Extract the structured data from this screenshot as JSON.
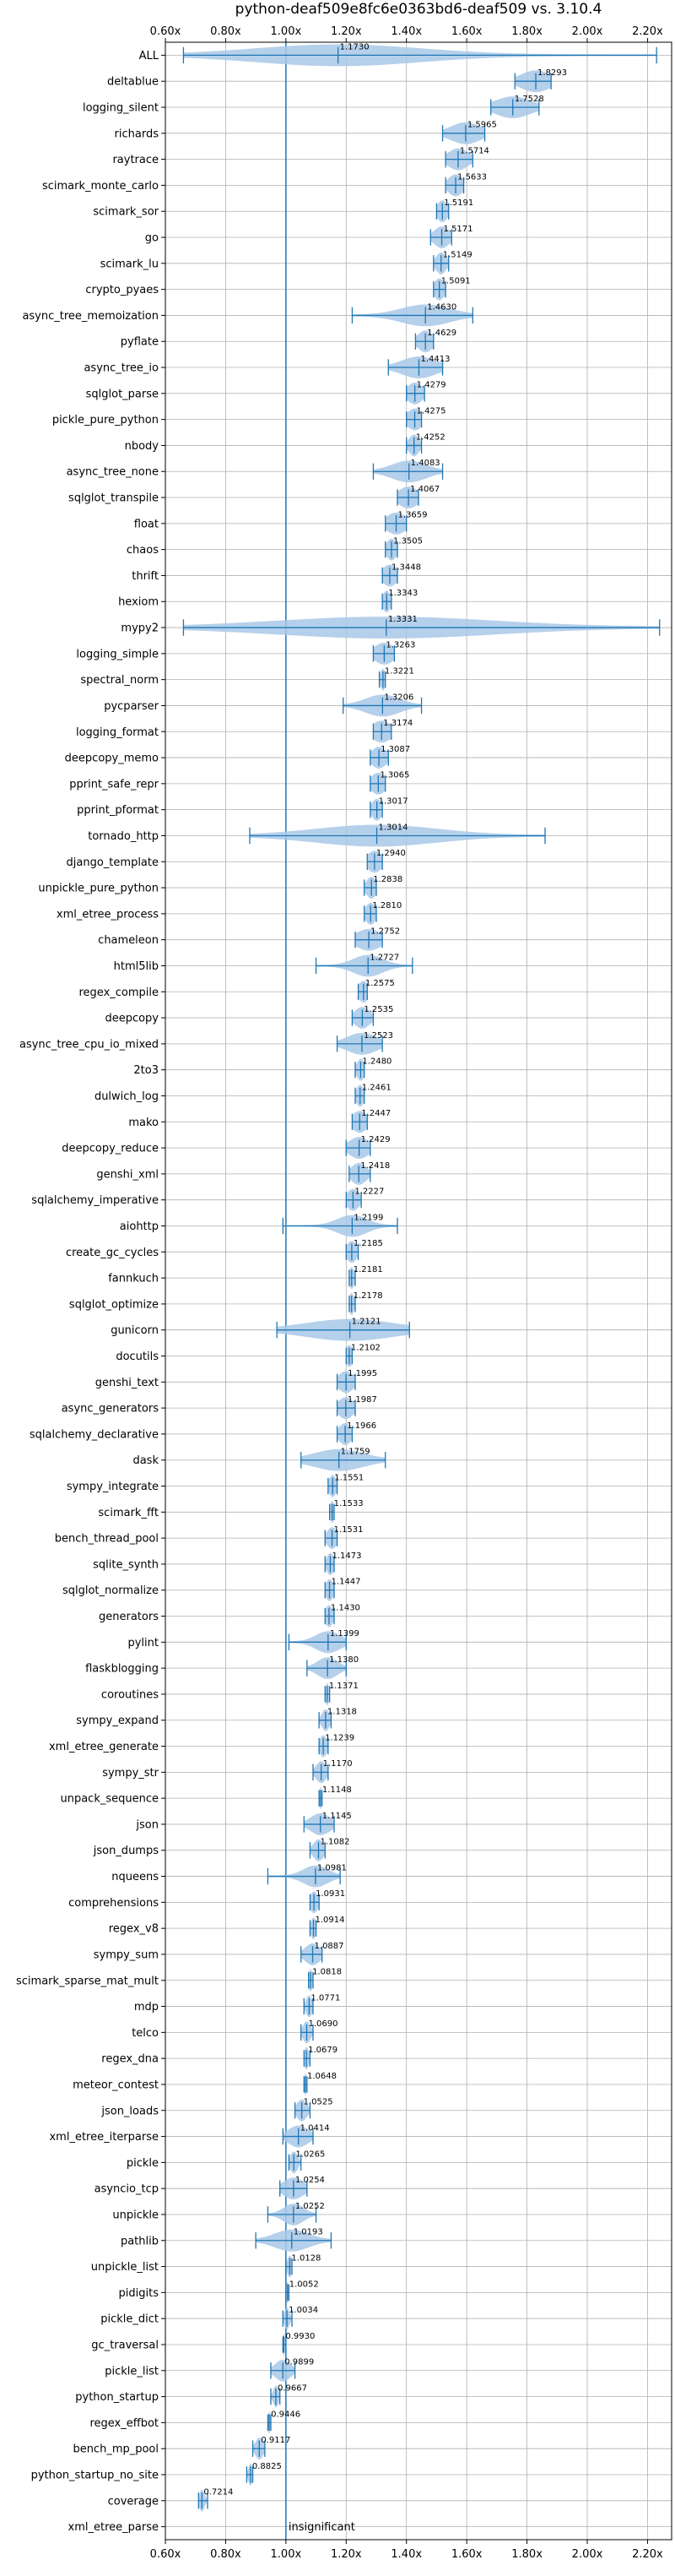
{
  "chart_data": {
    "type": "violin",
    "title": "python-deaf509e8fc6e0363bd6-deaf509 vs. 3.10.4",
    "xlim": [
      0.6,
      2.28
    ],
    "x_ticks": [
      0.6,
      0.8,
      1.0,
      1.2,
      1.4,
      1.6,
      1.8,
      2.0,
      2.2
    ],
    "x_tick_labels": [
      "0.60x",
      "0.80x",
      "1.00x",
      "1.20x",
      "1.40x",
      "1.60x",
      "1.80x",
      "2.00x",
      "2.20x"
    ],
    "grid": true,
    "reference_line": 1.0,
    "colors": {
      "violin": "#a8c8e8",
      "line": "#1f77b4",
      "grid": "#b0b0b0"
    },
    "benchmarks": [
      {
        "name": "ALL",
        "value": 1.173,
        "label": "1.1730",
        "min": 0.66,
        "max": 2.23,
        "spread": 0.34
      },
      {
        "name": "deltablue",
        "value": 1.8293,
        "label": "1.8293",
        "min": 1.76,
        "max": 1.88,
        "spread": 0.06
      },
      {
        "name": "logging_silent",
        "value": 1.7528,
        "label": "1.7528",
        "min": 1.68,
        "max": 1.84,
        "spread": 0.07
      },
      {
        "name": "richards",
        "value": 1.5965,
        "label": "1.5965",
        "min": 1.52,
        "max": 1.66,
        "spread": 0.06
      },
      {
        "name": "raytrace",
        "value": 1.5714,
        "label": "1.5714",
        "min": 1.53,
        "max": 1.62,
        "spread": 0.04
      },
      {
        "name": "scimark_monte_carlo",
        "value": 1.5633,
        "label": "1.5633",
        "min": 1.53,
        "max": 1.59,
        "spread": 0.03
      },
      {
        "name": "scimark_sor",
        "value": 1.5191,
        "label": "1.5191",
        "min": 1.5,
        "max": 1.54,
        "spread": 0.02
      },
      {
        "name": "go",
        "value": 1.5171,
        "label": "1.5171",
        "min": 1.48,
        "max": 1.55,
        "spread": 0.03
      },
      {
        "name": "scimark_lu",
        "value": 1.5149,
        "label": "1.5149",
        "min": 1.49,
        "max": 1.54,
        "spread": 0.02
      },
      {
        "name": "crypto_pyaes",
        "value": 1.5091,
        "label": "1.5091",
        "min": 1.49,
        "max": 1.53,
        "spread": 0.02
      },
      {
        "name": "async_tree_memoization",
        "value": 1.463,
        "label": "1.4630",
        "min": 1.22,
        "max": 1.62,
        "spread": 0.1
      },
      {
        "name": "pyflate",
        "value": 1.4629,
        "label": "1.4629",
        "min": 1.43,
        "max": 1.49,
        "spread": 0.03
      },
      {
        "name": "async_tree_io",
        "value": 1.4413,
        "label": "1.4413",
        "min": 1.34,
        "max": 1.52,
        "spread": 0.07
      },
      {
        "name": "sqlglot_parse",
        "value": 1.4279,
        "label": "1.4279",
        "min": 1.4,
        "max": 1.46,
        "spread": 0.03
      },
      {
        "name": "pickle_pure_python",
        "value": 1.4275,
        "label": "1.4275",
        "min": 1.4,
        "max": 1.45,
        "spread": 0.03
      },
      {
        "name": "nbody",
        "value": 1.4252,
        "label": "1.4252",
        "min": 1.4,
        "max": 1.45,
        "spread": 0.02
      },
      {
        "name": "async_tree_none",
        "value": 1.4083,
        "label": "1.4083",
        "min": 1.29,
        "max": 1.52,
        "spread": 0.07
      },
      {
        "name": "sqlglot_transpile",
        "value": 1.4067,
        "label": "1.4067",
        "min": 1.37,
        "max": 1.44,
        "spread": 0.04
      },
      {
        "name": "float",
        "value": 1.3659,
        "label": "1.3659",
        "min": 1.33,
        "max": 1.4,
        "spread": 0.04
      },
      {
        "name": "chaos",
        "value": 1.3505,
        "label": "1.3505",
        "min": 1.33,
        "max": 1.37,
        "spread": 0.02
      },
      {
        "name": "thrift",
        "value": 1.3448,
        "label": "1.3448",
        "min": 1.32,
        "max": 1.37,
        "spread": 0.03
      },
      {
        "name": "hexiom",
        "value": 1.3343,
        "label": "1.3343",
        "min": 1.32,
        "max": 1.35,
        "spread": 0.015
      },
      {
        "name": "mypy2",
        "value": 1.3331,
        "label": "1.3331",
        "min": 0.66,
        "max": 2.24,
        "spread": 0.45
      },
      {
        "name": "logging_simple",
        "value": 1.3263,
        "label": "1.3263",
        "min": 1.29,
        "max": 1.36,
        "spread": 0.04
      },
      {
        "name": "spectral_norm",
        "value": 1.3221,
        "label": "1.3221",
        "min": 1.31,
        "max": 1.33,
        "spread": 0.01
      },
      {
        "name": "pycparser",
        "value": 1.3206,
        "label": "1.3206",
        "min": 1.19,
        "max": 1.45,
        "spread": 0.07
      },
      {
        "name": "logging_format",
        "value": 1.3174,
        "label": "1.3174",
        "min": 1.29,
        "max": 1.35,
        "spread": 0.04
      },
      {
        "name": "deepcopy_memo",
        "value": 1.3087,
        "label": "1.3087",
        "min": 1.28,
        "max": 1.34,
        "spread": 0.03
      },
      {
        "name": "pprint_safe_repr",
        "value": 1.3065,
        "label": "1.3065",
        "min": 1.28,
        "max": 1.33,
        "spread": 0.03
      },
      {
        "name": "pprint_pformat",
        "value": 1.3017,
        "label": "1.3017",
        "min": 1.28,
        "max": 1.32,
        "spread": 0.02
      },
      {
        "name": "tornado_http",
        "value": 1.3014,
        "label": "1.3014",
        "min": 0.88,
        "max": 1.86,
        "spread": 0.25
      },
      {
        "name": "django_template",
        "value": 1.294,
        "label": "1.2940",
        "min": 1.27,
        "max": 1.32,
        "spread": 0.03
      },
      {
        "name": "unpickle_pure_python",
        "value": 1.2838,
        "label": "1.2838",
        "min": 1.26,
        "max": 1.3,
        "spread": 0.02
      },
      {
        "name": "xml_etree_process",
        "value": 1.281,
        "label": "1.2810",
        "min": 1.26,
        "max": 1.3,
        "spread": 0.02
      },
      {
        "name": "chameleon",
        "value": 1.2752,
        "label": "1.2752",
        "min": 1.23,
        "max": 1.32,
        "spread": 0.05
      },
      {
        "name": "html5lib",
        "value": 1.2727,
        "label": "1.2727",
        "min": 1.1,
        "max": 1.42,
        "spread": 0.06
      },
      {
        "name": "regex_compile",
        "value": 1.2575,
        "label": "1.2575",
        "min": 1.24,
        "max": 1.27,
        "spread": 0.02
      },
      {
        "name": "deepcopy",
        "value": 1.2535,
        "label": "1.2535",
        "min": 1.22,
        "max": 1.29,
        "spread": 0.03
      },
      {
        "name": "async_tree_cpu_io_mixed",
        "value": 1.2523,
        "label": "1.2523",
        "min": 1.17,
        "max": 1.32,
        "spread": 0.06
      },
      {
        "name": "2to3",
        "value": 1.248,
        "label": "1.2480",
        "min": 1.23,
        "max": 1.26,
        "spread": 0.015
      },
      {
        "name": "dulwich_log",
        "value": 1.2461,
        "label": "1.2461",
        "min": 1.23,
        "max": 1.26,
        "spread": 0.015
      },
      {
        "name": "mako",
        "value": 1.2447,
        "label": "1.2447",
        "min": 1.22,
        "max": 1.27,
        "spread": 0.03
      },
      {
        "name": "deepcopy_reduce",
        "value": 1.2429,
        "label": "1.2429",
        "min": 1.2,
        "max": 1.28,
        "spread": 0.04
      },
      {
        "name": "genshi_xml",
        "value": 1.2418,
        "label": "1.2418",
        "min": 1.21,
        "max": 1.28,
        "spread": 0.03
      },
      {
        "name": "sqlalchemy_imperative",
        "value": 1.2227,
        "label": "1.2227",
        "min": 1.2,
        "max": 1.25,
        "spread": 0.025
      },
      {
        "name": "aiohttp",
        "value": 1.2199,
        "label": "1.2199",
        "min": 0.99,
        "max": 1.37,
        "spread": 0.06
      },
      {
        "name": "create_gc_cycles",
        "value": 1.2185,
        "label": "1.2185",
        "min": 1.2,
        "max": 1.24,
        "spread": 0.02
      },
      {
        "name": "fannkuch",
        "value": 1.2181,
        "label": "1.2181",
        "min": 1.21,
        "max": 1.23,
        "spread": 0.01
      },
      {
        "name": "sqlglot_optimize",
        "value": 1.2178,
        "label": "1.2178",
        "min": 1.21,
        "max": 1.23,
        "spread": 0.01
      },
      {
        "name": "gunicorn",
        "value": 1.2121,
        "label": "1.2121",
        "min": 0.97,
        "max": 1.41,
        "spread": 0.18
      },
      {
        "name": "docutils",
        "value": 1.2102,
        "label": "1.2102",
        "min": 1.2,
        "max": 1.22,
        "spread": 0.015
      },
      {
        "name": "genshi_text",
        "value": 1.1995,
        "label": "1.1995",
        "min": 1.17,
        "max": 1.23,
        "spread": 0.03
      },
      {
        "name": "async_generators",
        "value": 1.1987,
        "label": "1.1987",
        "min": 1.17,
        "max": 1.23,
        "spread": 0.03
      },
      {
        "name": "sqlalchemy_declarative",
        "value": 1.1966,
        "label": "1.1966",
        "min": 1.17,
        "max": 1.22,
        "spread": 0.025
      },
      {
        "name": "dask",
        "value": 1.1759,
        "label": "1.1759",
        "min": 1.05,
        "max": 1.33,
        "spread": 0.1
      },
      {
        "name": "sympy_integrate",
        "value": 1.1551,
        "label": "1.1551",
        "min": 1.14,
        "max": 1.17,
        "spread": 0.015
      },
      {
        "name": "scimark_fft",
        "value": 1.1533,
        "label": "1.1533",
        "min": 1.145,
        "max": 1.16,
        "spread": 0.008
      },
      {
        "name": "bench_thread_pool",
        "value": 1.1531,
        "label": "1.1531",
        "min": 1.13,
        "max": 1.17,
        "spread": 0.02
      },
      {
        "name": "sqlite_synth",
        "value": 1.1473,
        "label": "1.1473",
        "min": 1.13,
        "max": 1.16,
        "spread": 0.015
      },
      {
        "name": "sqlglot_normalize",
        "value": 1.1447,
        "label": "1.1447",
        "min": 1.13,
        "max": 1.16,
        "spread": 0.015
      },
      {
        "name": "generators",
        "value": 1.143,
        "label": "1.1430",
        "min": 1.13,
        "max": 1.16,
        "spread": 0.015
      },
      {
        "name": "pylint",
        "value": 1.1399,
        "label": "1.1399",
        "min": 1.01,
        "max": 1.2,
        "spread": 0.05
      },
      {
        "name": "flaskblogging",
        "value": 1.138,
        "label": "1.1380",
        "min": 1.07,
        "max": 1.2,
        "spread": 0.04
      },
      {
        "name": "coroutines",
        "value": 1.1371,
        "label": "1.1371",
        "min": 1.13,
        "max": 1.145,
        "spread": 0.008
      },
      {
        "name": "sympy_expand",
        "value": 1.1318,
        "label": "1.1318",
        "min": 1.11,
        "max": 1.15,
        "spread": 0.015
      },
      {
        "name": "xml_etree_generate",
        "value": 1.1239,
        "label": "1.1239",
        "min": 1.11,
        "max": 1.14,
        "spread": 0.015
      },
      {
        "name": "sympy_str",
        "value": 1.117,
        "label": "1.1170",
        "min": 1.09,
        "max": 1.14,
        "spread": 0.02
      },
      {
        "name": "unpack_sequence",
        "value": 1.1148,
        "label": "1.1148",
        "min": 1.11,
        "max": 1.12,
        "spread": 0.005
      },
      {
        "name": "json",
        "value": 1.1145,
        "label": "1.1145",
        "min": 1.06,
        "max": 1.16,
        "spread": 0.04
      },
      {
        "name": "json_dumps",
        "value": 1.1082,
        "label": "1.1082",
        "min": 1.08,
        "max": 1.13,
        "spread": 0.02
      },
      {
        "name": "nqueens",
        "value": 1.0981,
        "label": "1.0981",
        "min": 0.94,
        "max": 1.18,
        "spread": 0.05
      },
      {
        "name": "comprehensions",
        "value": 1.0931,
        "label": "1.0931",
        "min": 1.08,
        "max": 1.11,
        "spread": 0.015
      },
      {
        "name": "regex_v8",
        "value": 1.0914,
        "label": "1.0914",
        "min": 1.08,
        "max": 1.1,
        "spread": 0.01
      },
      {
        "name": "sympy_sum",
        "value": 1.0887,
        "label": "1.0887",
        "min": 1.05,
        "max": 1.12,
        "spread": 0.03
      },
      {
        "name": "scimark_sparse_mat_mult",
        "value": 1.0818,
        "label": "1.0818",
        "min": 1.075,
        "max": 1.09,
        "spread": 0.008
      },
      {
        "name": "mdp",
        "value": 1.0771,
        "label": "1.0771",
        "min": 1.06,
        "max": 1.09,
        "spread": 0.012
      },
      {
        "name": "telco",
        "value": 1.069,
        "label": "1.0690",
        "min": 1.05,
        "max": 1.09,
        "spread": 0.015
      },
      {
        "name": "regex_dna",
        "value": 1.0679,
        "label": "1.0679",
        "min": 1.06,
        "max": 1.08,
        "spread": 0.01
      },
      {
        "name": "meteor_contest",
        "value": 1.0648,
        "label": "1.0648",
        "min": 1.06,
        "max": 1.07,
        "spread": 0.005
      },
      {
        "name": "json_loads",
        "value": 1.0525,
        "label": "1.0525",
        "min": 1.03,
        "max": 1.08,
        "spread": 0.02
      },
      {
        "name": "xml_etree_iterparse",
        "value": 1.0414,
        "label": "1.0414",
        "min": 0.99,
        "max": 1.09,
        "spread": 0.04
      },
      {
        "name": "pickle",
        "value": 1.0265,
        "label": "1.0265",
        "min": 1.01,
        "max": 1.05,
        "spread": 0.015
      },
      {
        "name": "asyncio_tcp",
        "value": 1.0254,
        "label": "1.0254",
        "min": 0.98,
        "max": 1.07,
        "spread": 0.04
      },
      {
        "name": "unpickle",
        "value": 1.0252,
        "label": "1.0252",
        "min": 0.94,
        "max": 1.1,
        "spread": 0.04
      },
      {
        "name": "pathlib",
        "value": 1.0193,
        "label": "1.0193",
        "min": 0.9,
        "max": 1.15,
        "spread": 0.07
      },
      {
        "name": "unpickle_list",
        "value": 1.0128,
        "label": "1.0128",
        "min": 1.0,
        "max": 1.02,
        "spread": 0.01
      },
      {
        "name": "pidigits",
        "value": 1.0052,
        "label": "1.0052",
        "min": 1.0,
        "max": 1.01,
        "spread": 0.005
      },
      {
        "name": "pickle_dict",
        "value": 1.0034,
        "label": "1.0034",
        "min": 0.99,
        "max": 1.02,
        "spread": 0.01
      },
      {
        "name": "gc_traversal",
        "value": 0.993,
        "label": "0.9930",
        "min": 0.99,
        "max": 1.0,
        "spread": 0.005
      },
      {
        "name": "pickle_list",
        "value": 0.9899,
        "label": "0.9899",
        "min": 0.95,
        "max": 1.03,
        "spread": 0.03
      },
      {
        "name": "python_startup",
        "value": 0.9667,
        "label": "0.9667",
        "min": 0.95,
        "max": 0.98,
        "spread": 0.01
      },
      {
        "name": "regex_effbot",
        "value": 0.9446,
        "label": "0.9446",
        "min": 0.94,
        "max": 0.95,
        "spread": 0.005
      },
      {
        "name": "bench_mp_pool",
        "value": 0.9117,
        "label": "0.9117",
        "min": 0.89,
        "max": 0.93,
        "spread": 0.015
      },
      {
        "name": "python_startup_no_site",
        "value": 0.8825,
        "label": "0.8825",
        "min": 0.87,
        "max": 0.89,
        "spread": 0.008
      },
      {
        "name": "coverage",
        "value": 0.7214,
        "label": "0.7214",
        "min": 0.71,
        "max": 0.74,
        "spread": 0.01
      },
      {
        "name": "xml_etree_parse",
        "value": 1.0,
        "label": "insignificant",
        "min": null,
        "max": null,
        "spread": 0
      }
    ]
  }
}
